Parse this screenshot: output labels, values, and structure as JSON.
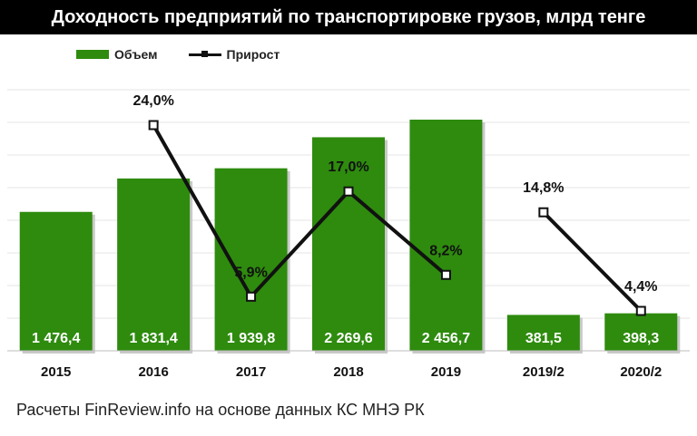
{
  "title": "Доходность предприятий по транспортировке грузов, млрд тенге",
  "legend": {
    "bar_label": "Объем",
    "line_label": "Прирост"
  },
  "footer": "Расчеты FinReview.info на основе данных КС МНЭ РК",
  "colors": {
    "bar": "#2e8b0e",
    "line": "#111111",
    "title_bg": "#000000"
  },
  "chart_data": {
    "type": "bar",
    "title": "Доходность предприятий по транспортировке грузов, млрд тенге",
    "categories": [
      "2015",
      "2016",
      "2017",
      "2018",
      "2019",
      "2019/2",
      "2020/2"
    ],
    "series": [
      {
        "name": "Объем",
        "type": "bar",
        "values": [
          1476.4,
          1831.4,
          1939.8,
          2269.6,
          2456.7,
          381.5,
          398.3
        ],
        "labels": [
          "1 476,4",
          "1 831,4",
          "1 939,8",
          "2 269,6",
          "2 456,7",
          "381,5",
          "398,3"
        ]
      },
      {
        "name": "Прирост",
        "type": "line",
        "values": [
          null,
          24.0,
          5.9,
          17.0,
          8.2,
          14.8,
          4.4
        ],
        "labels": [
          "",
          "24,0%",
          "5,9%",
          "17,0%",
          "8,2%",
          "14,8%",
          "4,4%"
        ],
        "segments": [
          [
            1,
            4
          ],
          [
            5,
            6
          ]
        ]
      }
    ],
    "xlabel": "",
    "ylabel": "",
    "ylim": [
      0,
      3000
    ],
    "grid": true,
    "legend_position": "top-left"
  }
}
